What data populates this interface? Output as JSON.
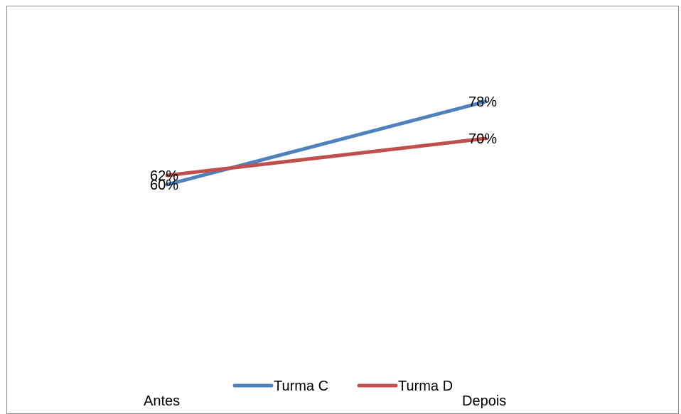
{
  "chart_data": {
    "type": "line",
    "categories": [
      "Antes",
      "Depois"
    ],
    "series": [
      {
        "name": "Turma C",
        "values": [
          60,
          78
        ],
        "labels": [
          "60%",
          "78%"
        ],
        "color": "#4f81bd"
      },
      {
        "name": "Turma D",
        "values": [
          62,
          70
        ],
        "labels": [
          "62%",
          "70%"
        ],
        "color": "#c0504d"
      }
    ],
    "ylim": [
      0,
      100
    ],
    "grid": false,
    "legend_position": "bottom"
  }
}
